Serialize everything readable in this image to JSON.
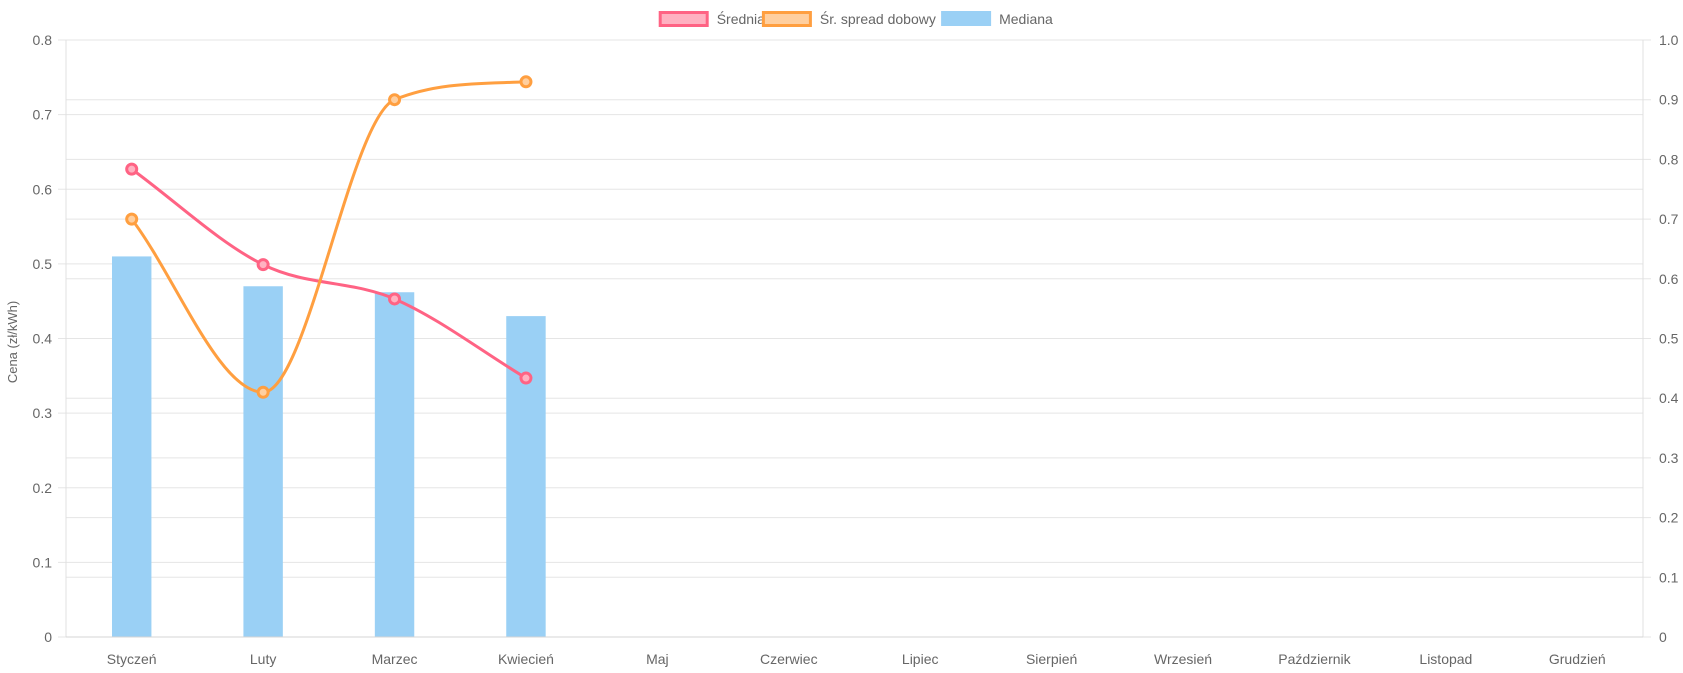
{
  "chart_data": {
    "type": "bar",
    "categories": [
      "Styczeń",
      "Luty",
      "Marzec",
      "Kwiecień",
      "Maj",
      "Czerwiec",
      "Lipiec",
      "Sierpień",
      "Wrzesień",
      "Październik",
      "Listopad",
      "Grudzień"
    ],
    "series": [
      {
        "name": "Średnia",
        "type": "line",
        "axis": "left",
        "color": "#ff6384",
        "fill": "#ffb1c1",
        "values": [
          0.627,
          0.499,
          0.453,
          0.347,
          null,
          null,
          null,
          null,
          null,
          null,
          null,
          null
        ]
      },
      {
        "name": "Śr. spread dobowy",
        "type": "line",
        "axis": "right",
        "color": "#ff9f40",
        "fill": "#ffcf9f",
        "values": [
          0.7,
          0.41,
          0.9,
          0.93,
          null,
          null,
          null,
          null,
          null,
          null,
          null,
          null
        ]
      },
      {
        "name": "Mediana",
        "type": "bar",
        "axis": "left",
        "color": "#9ad0f5",
        "values": [
          0.51,
          0.47,
          0.462,
          0.43,
          null,
          null,
          null,
          null,
          null,
          null,
          null,
          null
        ]
      }
    ],
    "ylabel": "Cena (zł/kWh)",
    "ylim": [
      0,
      0.8
    ],
    "y2lim": [
      0,
      1.0
    ],
    "yticks": [
      "0",
      "0.1",
      "0.2",
      "0.3",
      "0.4",
      "0.5",
      "0.6",
      "0.7",
      "0.8"
    ],
    "y2ticks": [
      "0",
      "0.1",
      "0.2",
      "0.3",
      "0.4",
      "0.5",
      "0.6",
      "0.7",
      "0.8",
      "0.9",
      "1.0"
    ],
    "legend_position": "top",
    "grid": true
  }
}
